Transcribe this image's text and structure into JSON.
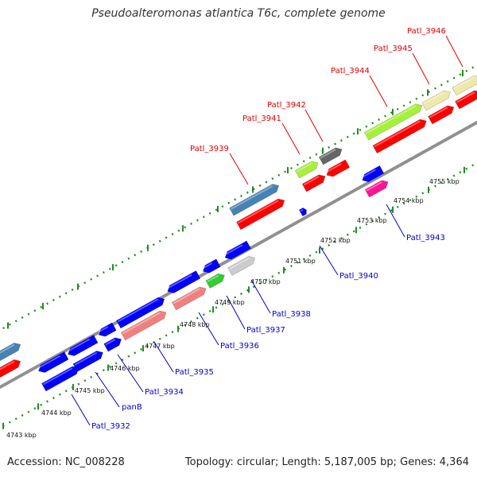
{
  "title": "Pseudoalteromonas atlantica T6c, complete genome",
  "footer": {
    "accession": "Accession: NC_008228",
    "topology": "Topology: circular; Length: 5,187,005 bp; Genes: 4,364"
  },
  "colors": {
    "backbone": "#909090",
    "dotted_track": "#228b22",
    "label_top": "#e00000",
    "label_bottom": "#0000c8"
  },
  "scale_labels": [
    "4743 kbp",
    "4744 kbp",
    "4745 kbp",
    "4746 kbp",
    "4747 kbp",
    "4748 kbp",
    "4749 kbp",
    "4750 kbp",
    "4751 kbp",
    "4752 kbp",
    "4753 kbp",
    "4754 kbp",
    "4755 kbp"
  ],
  "top_gene_labels": [
    "Patl_3939",
    "Patl_3941",
    "Patl_3942",
    "Patl_3944",
    "Patl_3945",
    "Patl_3946"
  ],
  "bottom_gene_labels": [
    "Patl_3932",
    "panB",
    "Patl_3934",
    "Patl_3935",
    "Patl_3936",
    "Patl_3937",
    "Patl_3938",
    "Patl_3940",
    "Patl_3943"
  ]
}
